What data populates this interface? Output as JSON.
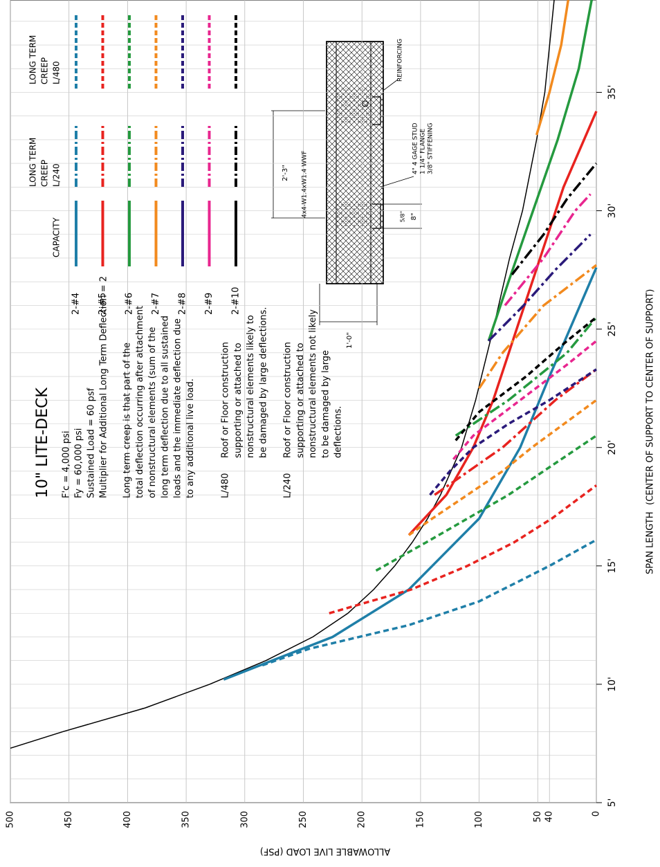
{
  "chart_data": {
    "type": "line",
    "title": "10\" LITE-DECK",
    "specs": [
      "F'c = 4,000 psi",
      "Fy = 60,000 psi",
      "Sustained Load = 60 psf",
      "Multiplier for Additional Long Term Deflection = 2"
    ],
    "note": [
      "Long term creep is that part of the",
      "total deflection occurring after attachment",
      "of nonstructural elements (sum of the",
      "long term deflection due to all sustained",
      "loads and the immediate deflection due",
      "to any additional live load."
    ],
    "definitions": [
      {
        "term": "L/480",
        "lines": [
          "Roof or Floor construction",
          "supporting or attached to",
          "nonstructural elements likely to",
          "be damaged by large deflections."
        ]
      },
      {
        "term": "L/240",
        "lines": [
          "Roof or Floor construction",
          "supporting or attached to",
          "nonstructural elements not likely",
          "to be damaged by large",
          "deflections."
        ]
      }
    ],
    "legend_headers": {
      "capacity": [
        "CAPACITY"
      ],
      "l240": [
        "LONG TERM",
        "CREEP",
        "L/240"
      ],
      "l480": [
        "LONG TERM",
        "CREEP",
        "L/480"
      ]
    },
    "x_label": [
      "SPAN LENGTH",
      "(CENTER OF SUPPORT TO CENTER OF SUPPORT)"
    ],
    "y_label": "ALLOWABLE LIVE LOAD (PSF)",
    "xlim": [
      5,
      38.9
    ],
    "ylim": [
      0,
      500
    ],
    "xticks": [
      {
        "value": 5,
        "label": "5'"
      },
      {
        "value": 10,
        "label": "10'"
      },
      {
        "value": 15,
        "label": "15'"
      },
      {
        "value": 20,
        "label": "20'"
      },
      {
        "value": 25,
        "label": "25'"
      },
      {
        "value": 30,
        "label": "30'"
      },
      {
        "value": 35,
        "label": "35'"
      }
    ],
    "yticks": [
      0,
      40,
      50,
      100,
      150,
      200,
      250,
      300,
      350,
      400,
      450,
      500
    ],
    "grid": true,
    "envelope": {
      "color": "#000000",
      "x": [
        7.3,
        8,
        9,
        10,
        11,
        12,
        13,
        14,
        15,
        16,
        17,
        18,
        20,
        22,
        25,
        28,
        30,
        33,
        35,
        38.9
      ],
      "values": [
        500,
        455,
        385,
        330,
        282,
        242,
        212,
        190,
        172,
        157,
        144,
        133,
        115,
        103,
        88,
        74,
        63,
        51,
        44,
        36
      ]
    },
    "series": [
      {
        "name": "2-#4",
        "color": "#1f7fa8",
        "capacity": {
          "x": [
            10.2,
            12,
            14,
            17,
            20,
            23,
            27.6
          ],
          "values": [
            318,
            225,
            160,
            100,
            65,
            40,
            0
          ]
        },
        "l480": {
          "x": [
            10.8,
            11.5,
            12.5,
            13.5,
            15,
            16.1
          ],
          "values": [
            285,
            245,
            160,
            100,
            40,
            0
          ]
        }
      },
      {
        "name": "2-#5",
        "color": "#e8231f",
        "capacity": {
          "x": [
            16.3,
            18,
            20,
            22,
            25,
            28,
            31,
            34.2
          ],
          "values": [
            160,
            128,
            105,
            88,
            68,
            48,
            28,
            0
          ]
        },
        "l240": {
          "x": [
            18,
            20,
            22,
            23.3
          ],
          "values": [
            138,
            80,
            35,
            0
          ]
        },
        "l480": {
          "x": [
            13,
            14,
            15,
            16,
            17,
            18.4
          ],
          "values": [
            228,
            158,
            110,
            70,
            38,
            0
          ]
        }
      },
      {
        "name": "2-#6",
        "color": "#259a3f",
        "capacity": {
          "x": [
            24.5,
            27,
            30,
            33,
            36,
            38.9
          ],
          "values": [
            92,
            75,
            54,
            33,
            15,
            4
          ]
        },
        "l240": {
          "x": [
            20.5,
            22,
            24,
            25.5
          ],
          "values": [
            120,
            75,
            25,
            0
          ]
        },
        "l480": {
          "x": [
            14.8,
            16,
            17,
            18,
            19,
            20.5
          ],
          "values": [
            188,
            145,
            110,
            75,
            45,
            0
          ]
        }
      },
      {
        "name": "2-#7",
        "color": "#f28a1e",
        "capacity": {
          "x": [
            33.2,
            35,
            37,
            38.9
          ],
          "values": [
            51,
            40,
            30,
            24
          ]
        },
        "l240": {
          "x": [
            22.5,
            24,
            26,
            27.7
          ],
          "values": [
            100,
            80,
            45,
            0
          ]
        },
        "l480": {
          "x": [
            16.3,
            17,
            18,
            19,
            20,
            22
          ],
          "values": [
            160,
            140,
            110,
            80,
            55,
            0
          ]
        }
      },
      {
        "name": "2-#8",
        "color": "#2a1a7a",
        "l240": {
          "x": [
            24.5,
            26,
            27.5,
            29
          ],
          "values": [
            92,
            62,
            35,
            5
          ]
        },
        "l480": {
          "x": [
            18,
            19,
            20,
            21,
            22,
            23.3
          ],
          "values": [
            142,
            125,
            105,
            75,
            40,
            0
          ]
        }
      },
      {
        "name": "2-#9",
        "color": "#e8268f",
        "l240": {
          "x": [
            26,
            28,
            30,
            30.7
          ],
          "values": [
            78,
            45,
            18,
            5
          ]
        },
        "l480": {
          "x": [
            19.5,
            20.5,
            22,
            23.5,
            24.5
          ],
          "values": [
            122,
            105,
            65,
            25,
            0
          ]
        }
      },
      {
        "name": "2-#10",
        "color": "#000000",
        "l240": {
          "x": [
            27.3,
            29,
            30.5,
            32
          ],
          "values": [
            72,
            45,
            25,
            0
          ]
        },
        "l480": {
          "x": [
            20.3,
            21.5,
            23,
            24.5,
            25.5
          ],
          "values": [
            120,
            100,
            60,
            25,
            0
          ]
        }
      }
    ],
    "detail": {
      "reinforcing": "REINFORCING",
      "width": "2'-3\"",
      "mesh": "4x4-W1.4xW1.4 WWF",
      "stud": [
        "4\" 4 GAGE STUD",
        "1 1/4\" FLANGE",
        "3/8\" STIFFENING"
      ],
      "rib": "8\"",
      "gap": "5/8\"",
      "depth": "1'-0\""
    }
  }
}
